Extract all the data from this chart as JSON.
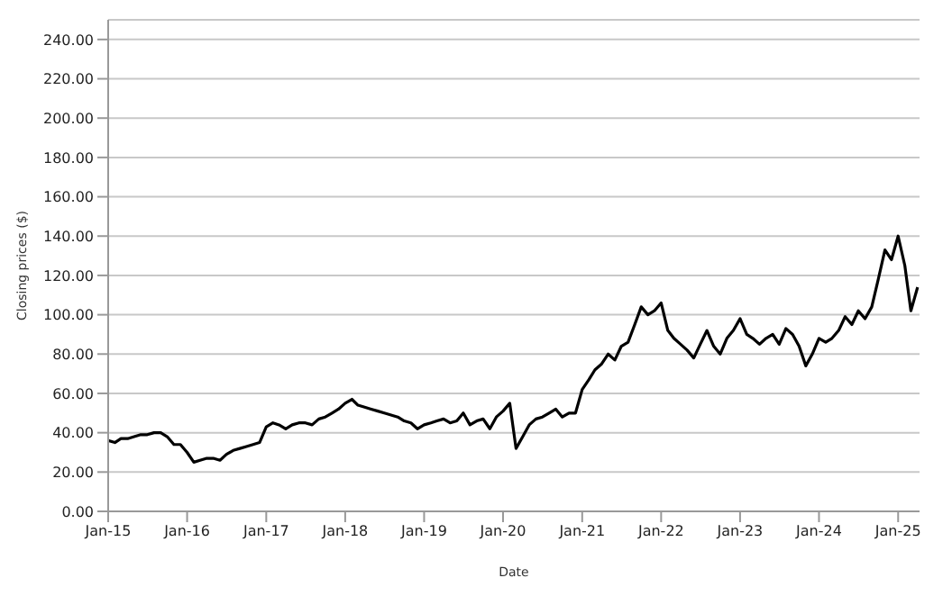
{
  "chart_data": {
    "type": "line",
    "xlabel": "Date",
    "ylabel": "Closing prices ($)",
    "x": [
      "2015-01",
      "2015-02",
      "2015-03",
      "2015-04",
      "2015-05",
      "2015-06",
      "2015-07",
      "2015-08",
      "2015-09",
      "2015-10",
      "2015-11",
      "2015-12",
      "2016-01",
      "2016-02",
      "2016-03",
      "2016-04",
      "2016-05",
      "2016-06",
      "2016-07",
      "2016-08",
      "2016-09",
      "2016-10",
      "2016-11",
      "2016-12",
      "2017-01",
      "2017-02",
      "2017-03",
      "2017-04",
      "2017-05",
      "2017-06",
      "2017-07",
      "2017-08",
      "2017-09",
      "2017-10",
      "2017-11",
      "2017-12",
      "2018-01",
      "2018-02",
      "2018-03",
      "2018-04",
      "2018-05",
      "2018-06",
      "2018-07",
      "2018-08",
      "2018-09",
      "2018-10",
      "2018-11",
      "2018-12",
      "2019-01",
      "2019-02",
      "2019-03",
      "2019-04",
      "2019-05",
      "2019-06",
      "2019-07",
      "2019-08",
      "2019-09",
      "2019-10",
      "2019-11",
      "2019-12",
      "2020-01",
      "2020-02",
      "2020-03",
      "2020-04",
      "2020-05",
      "2020-06",
      "2020-07",
      "2020-08",
      "2020-09",
      "2020-10",
      "2020-11",
      "2020-12",
      "2021-01",
      "2021-02",
      "2021-03",
      "2021-04",
      "2021-05",
      "2021-06",
      "2021-07",
      "2021-08",
      "2021-09",
      "2021-10",
      "2021-11",
      "2021-12",
      "2022-01",
      "2022-02",
      "2022-03",
      "2022-04",
      "2022-05",
      "2022-06",
      "2022-07",
      "2022-08",
      "2022-09",
      "2022-10",
      "2022-11",
      "2022-12",
      "2023-01",
      "2023-02",
      "2023-03",
      "2023-04",
      "2023-05",
      "2023-06",
      "2023-07",
      "2023-08",
      "2023-09",
      "2023-10",
      "2023-11",
      "2023-12",
      "2024-01",
      "2024-02",
      "2024-03",
      "2024-04",
      "2024-05",
      "2024-06",
      "2024-07",
      "2024-08",
      "2024-09",
      "2024-10",
      "2024-11",
      "2024-12",
      "2025-01",
      "2025-02",
      "2025-03",
      "2025-04"
    ],
    "series": [
      {
        "color": "#000000",
        "values": [
          36,
          35,
          37,
          37,
          38,
          39,
          39,
          40,
          40,
          38,
          34,
          34,
          30,
          25,
          26,
          27,
          27,
          26,
          29,
          31,
          32,
          33,
          34,
          35,
          43,
          45,
          44,
          42,
          44,
          45,
          45,
          44,
          47,
          48,
          50,
          52,
          55,
          57,
          54,
          53,
          52,
          51,
          50,
          49,
          48,
          46,
          45,
          42,
          44,
          45,
          46,
          47,
          45,
          46,
          50,
          44,
          46,
          47,
          42,
          48,
          51,
          55,
          32,
          38,
          44,
          47,
          48,
          50,
          52,
          48,
          50,
          50,
          62,
          67,
          72,
          75,
          80,
          77,
          84,
          86,
          95,
          104,
          100,
          102,
          106,
          92,
          88,
          85,
          82,
          78,
          85,
          92,
          84,
          80,
          88,
          92,
          98,
          90,
          88,
          85,
          88,
          90,
          85,
          93,
          90,
          84,
          74,
          80,
          88,
          86,
          88,
          92,
          99,
          95,
          102,
          98,
          104,
          118,
          133,
          128,
          140,
          125,
          102,
          114
        ]
      }
    ],
    "xlim": [
      "2015-01",
      "2025-04-10"
    ],
    "xticks": [
      {
        "value": "2015-01",
        "label": "Jan-15"
      },
      {
        "value": "2016-01",
        "label": "Jan-16"
      },
      {
        "value": "2017-01",
        "label": "Jan-17"
      },
      {
        "value": "2018-01",
        "label": "Jan-18"
      },
      {
        "value": "2019-01",
        "label": "Jan-19"
      },
      {
        "value": "2020-01",
        "label": "Jan-20"
      },
      {
        "value": "2021-01",
        "label": "Jan-21"
      },
      {
        "value": "2022-01",
        "label": "Jan-22"
      },
      {
        "value": "2023-01",
        "label": "Jan-23"
      },
      {
        "value": "2024-01",
        "label": "Jan-24"
      },
      {
        "value": "2025-01",
        "label": "Jan-25"
      }
    ],
    "ylim": [
      0,
      250
    ],
    "yticks": [
      {
        "value": 0,
        "label": "0.00"
      },
      {
        "value": 20,
        "label": "20.00"
      },
      {
        "value": 40,
        "label": "40.00"
      },
      {
        "value": 60,
        "label": "60.00"
      },
      {
        "value": 80,
        "label": "80.00"
      },
      {
        "value": 100,
        "label": "100.00"
      },
      {
        "value": 120,
        "label": "120.00"
      },
      {
        "value": 140,
        "label": "140.00"
      },
      {
        "value": 160,
        "label": "160.00"
      },
      {
        "value": 180,
        "label": "180.00"
      },
      {
        "value": 200,
        "label": "200.00"
      },
      {
        "value": 220,
        "label": "220.00"
      },
      {
        "value": 240,
        "label": "240.00"
      }
    ],
    "grid": "y",
    "legend": false,
    "marker": "none",
    "line_style": "solid"
  }
}
